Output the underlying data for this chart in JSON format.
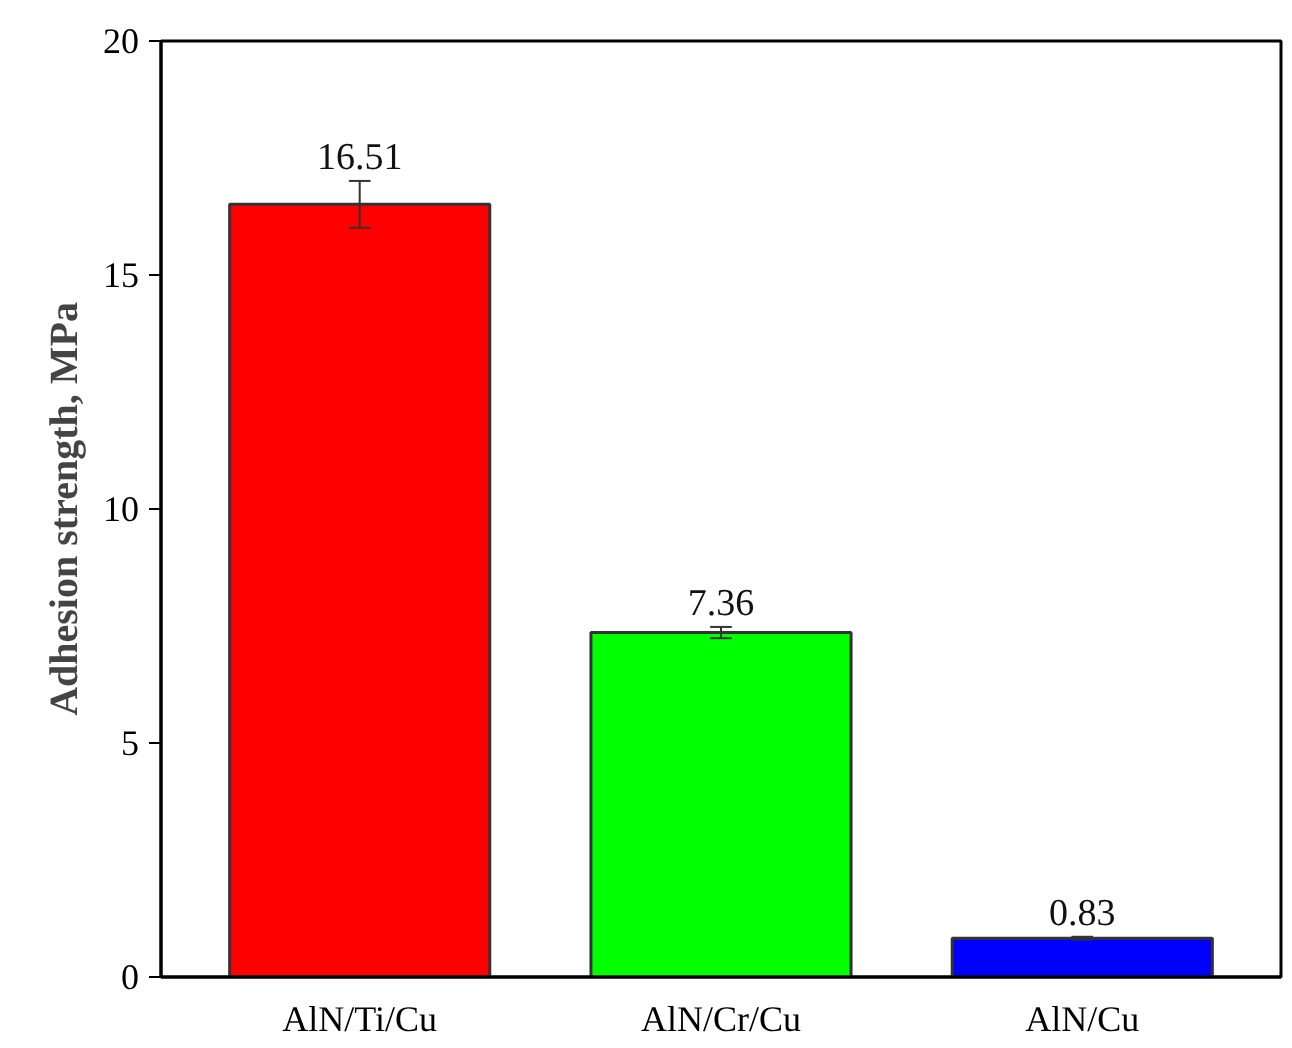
{
  "chart_data": {
    "type": "bar",
    "ylabel": "Adhesion strength, MPa",
    "categories": [
      "AlN/Ti/Cu",
      "AlN/Cr/Cu",
      "AlN/Cu"
    ],
    "values": [
      16.51,
      7.36,
      0.83
    ],
    "colors": [
      "#ff0000",
      "#00ff00",
      "#0000ff"
    ],
    "errors": [
      0.5,
      0.12,
      0.03
    ],
    "data_labels": true,
    "ylim": [
      0,
      20
    ],
    "yticks": [
      0,
      5,
      10,
      15,
      20
    ]
  }
}
